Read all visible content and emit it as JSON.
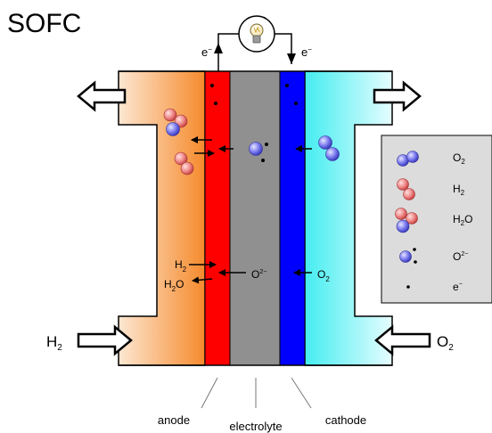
{
  "title": "SOFC",
  "electrons": {
    "left": "e",
    "right": "e",
    "superscript": "−"
  },
  "gases": {
    "h2": {
      "base": "H",
      "sub": "2"
    },
    "o2": {
      "base": "O",
      "sub": "2"
    }
  },
  "reaction_labels": {
    "h2": {
      "base": "H",
      "sub": "2"
    },
    "h2o": {
      "base": "H",
      "sub": "2",
      "tail": "O"
    },
    "o2_minus": {
      "base": "O",
      "sup": "2−"
    },
    "o2": {
      "base": "O",
      "sub": "2"
    }
  },
  "legend": {
    "items": [
      {
        "icon": "o2-molecule-icon",
        "base": "O",
        "sub": "2",
        "tail": "",
        "sup": ""
      },
      {
        "icon": "h2-molecule-icon",
        "base": "H",
        "sub": "2",
        "tail": "",
        "sup": ""
      },
      {
        "icon": "h2o-molecule-icon",
        "base": "H",
        "sub": "2",
        "tail": "O",
        "sup": ""
      },
      {
        "icon": "oxide-ion-icon",
        "base": "O",
        "sub": "",
        "tail": "",
        "sup": "2−"
      },
      {
        "icon": "electron-icon",
        "base": "e",
        "sub": "",
        "tail": "",
        "sup": "−"
      }
    ]
  },
  "labels": {
    "anode": "anode",
    "electrolyte": "electrolyte",
    "cathode": "cathode"
  },
  "colors": {
    "anode": "#ff0000",
    "electrolyte": "#909090",
    "cathode": "#0000ff",
    "fuel_gradient_light": "#fde7d2",
    "fuel_gradient_dark": "#f58a2c",
    "air_gradient_light": "#e6fdff",
    "air_gradient_dark": "#44edf0",
    "legend_bg": "#dcdcdc",
    "hydrogen_atom": "#e86565",
    "oxygen_atom": "#5a5ae6"
  }
}
